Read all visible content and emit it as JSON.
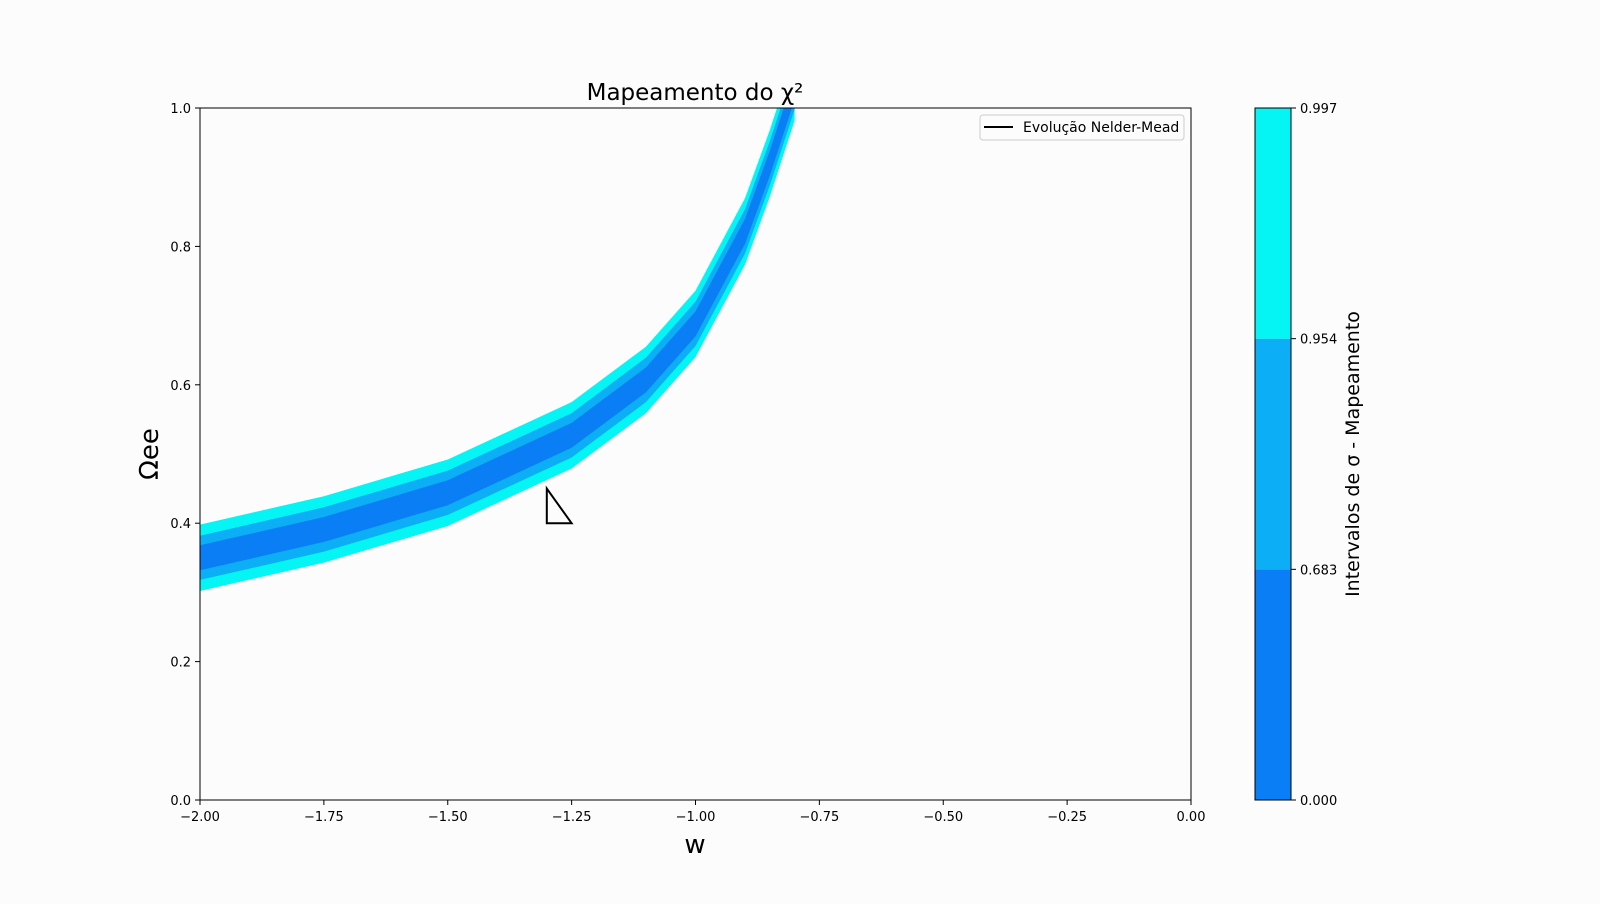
{
  "chart_data": {
    "type": "contourf",
    "title": "Mapeamento do χ²",
    "xlabel": "w",
    "ylabel": "Ωee",
    "xlim": [
      -2.0,
      0.0
    ],
    "ylim": [
      0.0,
      1.0
    ],
    "xticks": [
      -2.0,
      -1.75,
      -1.5,
      -1.25,
      -1.0,
      -0.75,
      -0.5,
      -0.25,
      0.0
    ],
    "xtick_labels": [
      "−2.00",
      "−1.75",
      "−1.50",
      "−1.25",
      "−1.00",
      "−0.75",
      "−0.50",
      "−0.25",
      "0.00"
    ],
    "yticks": [
      0.0,
      0.2,
      0.4,
      0.6,
      0.8,
      1.0
    ],
    "ytick_labels": [
      "0.0",
      "0.2",
      "0.4",
      "0.6",
      "0.8",
      "1.0"
    ],
    "grid": false,
    "legend": {
      "placement": "top-right",
      "entries": [
        {
          "label": "Evolução Nelder-Mead",
          "color": "#000000"
        }
      ]
    },
    "confidence_band": {
      "x": [
        -2.0,
        -1.75,
        -1.5,
        -1.25,
        -1.1,
        -1.0,
        -0.9,
        -0.85,
        -0.8
      ],
      "center": [
        0.35,
        0.391,
        0.444,
        0.527,
        0.607,
        0.688,
        0.822,
        0.92,
        1.03
      ],
      "half_widths_sigma": [
        0.018,
        0.032,
        0.048
      ]
    },
    "nelder_mead_simplex": {
      "x": [
        -1.3,
        -1.25,
        -1.3
      ],
      "y": [
        0.45,
        0.4,
        0.4
      ]
    },
    "colorbar": {
      "label": "Intervalos de σ - Mapeamento",
      "levels": [
        0.0,
        0.683,
        0.954,
        0.997
      ],
      "tick_labels": [
        "0.000",
        "0.683",
        "0.954",
        "0.997"
      ],
      "colors": [
        "#0a7ef5",
        "#0caef5",
        "#05f4f4"
      ]
    }
  }
}
